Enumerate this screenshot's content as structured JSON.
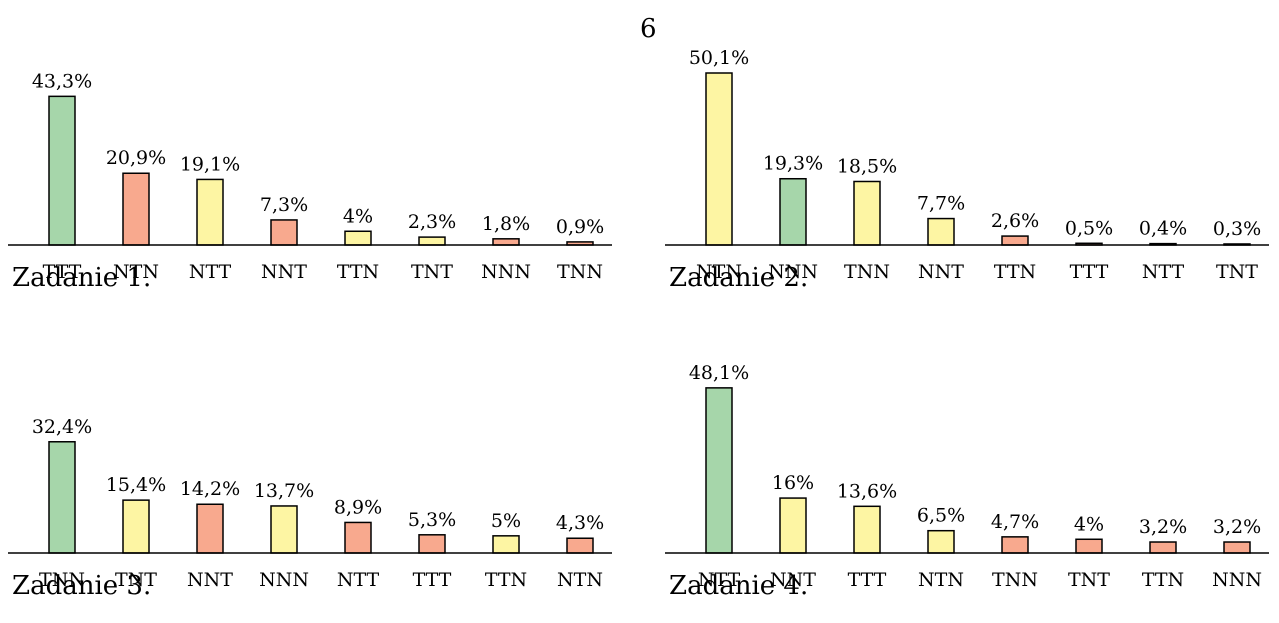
{
  "page_number": "6",
  "colors": {
    "green": "#a6d6aa",
    "yellow": "#fdf5a3",
    "red": "#f8a98e"
  },
  "chart_data": [
    {
      "type": "bar",
      "title": "Zadanie 1.",
      "ylim": [
        0,
        50.1
      ],
      "categories": [
        "TTT",
        "NTN",
        "NTT",
        "NNT",
        "TTN",
        "TNT",
        "NNN",
        "TNN"
      ],
      "values": [
        43.3,
        20.9,
        19.1,
        7.3,
        4,
        2.3,
        1.8,
        0.9
      ],
      "value_labels": [
        "43,3%",
        "20,9%",
        "19,1%",
        "7,3%",
        "4%",
        "2,3%",
        "1,8%",
        "0,9%"
      ],
      "bar_colors": [
        "green",
        "red",
        "yellow",
        "red",
        "yellow",
        "yellow",
        "red",
        "red"
      ],
      "grid": false
    },
    {
      "type": "bar",
      "title": "Zadanie 2.",
      "ylim": [
        0,
        50.1
      ],
      "categories": [
        "NTN",
        "NNN",
        "TNN",
        "NNT",
        "TTN",
        "TTT",
        "NTT",
        "TNT"
      ],
      "values": [
        50.1,
        19.3,
        18.5,
        7.7,
        2.6,
        0.5,
        0.4,
        0.3
      ],
      "value_labels": [
        "50,1%",
        "19,3%",
        "18,5%",
        "7,7%",
        "2,6%",
        "0,5%",
        "0,4%",
        "0,3%"
      ],
      "bar_colors": [
        "yellow",
        "green",
        "yellow",
        "yellow",
        "red",
        "red",
        "red",
        "red"
      ],
      "grid": false
    },
    {
      "type": "bar",
      "title": "Zadanie 3.",
      "ylim": [
        0,
        50.1
      ],
      "categories": [
        "TNN",
        "TNT",
        "NNT",
        "NNN",
        "NTT",
        "TTT",
        "TTN",
        "NTN"
      ],
      "values": [
        32.4,
        15.4,
        14.2,
        13.7,
        8.9,
        5.3,
        5,
        4.3
      ],
      "value_labels": [
        "32,4%",
        "15,4%",
        "14,2%",
        "13,7%",
        "8,9%",
        "5,3%",
        "5%",
        "4,3%"
      ],
      "bar_colors": [
        "green",
        "yellow",
        "red",
        "yellow",
        "red",
        "red",
        "yellow",
        "red"
      ],
      "grid": false
    },
    {
      "type": "bar",
      "title": "Zadanie 4.",
      "ylim": [
        0,
        50.1
      ],
      "categories": [
        "NTT",
        "NNT",
        "TTT",
        "NTN",
        "TNN",
        "TNT",
        "TTN",
        "NNN"
      ],
      "values": [
        48.1,
        16,
        13.6,
        6.5,
        4.7,
        4,
        3.2,
        3.2
      ],
      "value_labels": [
        "48,1%",
        "16%",
        "13,6%",
        "6,5%",
        "4,7%",
        "4%",
        "3,2%",
        "3,2%"
      ],
      "bar_colors": [
        "green",
        "yellow",
        "yellow",
        "yellow",
        "red",
        "red",
        "red",
        "red"
      ],
      "grid": false
    }
  ]
}
